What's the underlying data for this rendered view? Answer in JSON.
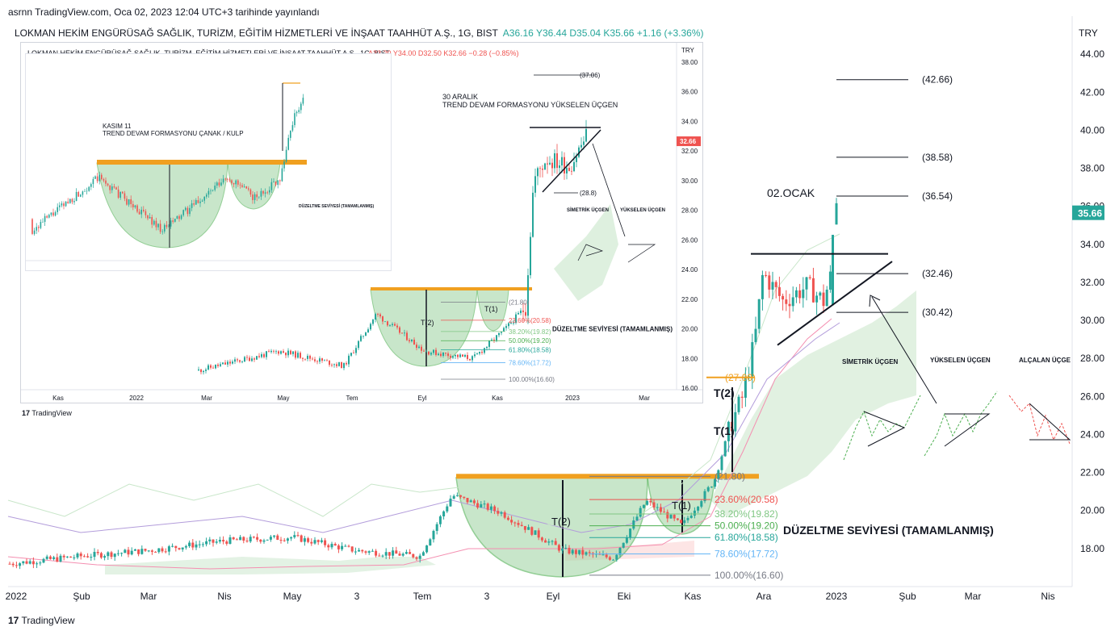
{
  "header": {
    "published": "asrnn TradingView.com, Oca 02, 2023 12:04 UTC+3 tarihinde yayınlandı"
  },
  "symbol": {
    "name": "LOKMAN HEKİM ENGÜRÜSAĞ SAĞLIK, TURİZM, EĞİTİM HİZMETLERİ VE İNŞAAT TAAHHÜT A.Ş., 1G, BIST",
    "open": "A36.16",
    "high": "Y36.44",
    "low": "D35.04",
    "close": "K35.66",
    "change": "+1.16 (+3.36%)"
  },
  "currency": "TRY",
  "last_price": "35.66",
  "brand": "TradingView",
  "colors": {
    "up": "#26a69a",
    "down": "#ef5350",
    "bowl": "#a5d6a7",
    "resistance": "#f0a020",
    "price_badge": "#26a69a"
  },
  "annotations": {
    "date_label": "02.OCAK",
    "t2": "T(2)",
    "t1": "T(1)",
    "sym_triangle": "SİMETRİK ÜÇGEN",
    "asc_triangle": "YÜKSELEN ÜÇGEN",
    "desc_triangle": "ALÇALAN ÜÇGE",
    "correction": "DÜZELTME SEVİYESİ (TAMAMLANMIŞ)",
    "fib": [
      "(21.80)",
      "23.60%(20.58)",
      "38.20%(19.82)",
      "50.00%(19.20)",
      "61.80%(18.58)",
      "78.60%(17.72)",
      "100.00%(16.60)"
    ],
    "targets": [
      "(42.66)",
      "(38.58)",
      "(36.54)",
      "(32.46)",
      "(30.42)"
    ],
    "orange_target": "(27.00)"
  },
  "inset": {
    "symbol": "LOKMAN HEKİM ENGÜRÜSAĞ SAĞLIK, TURİZM, EĞİTİM HİZMETLERİ VE İNŞAAT TAAHHÜT A.Ş., 1G, BIST",
    "ohlc": "A33.20 Y34.00 D32.50 K32.66 −0.28 (−0.85%)",
    "currency": "TRY",
    "last": "32.66",
    "note1_a": "30 ARALIK",
    "note1_b": "TREND DEVAM FORMASYONU YÜKSELEN ÜÇGEN",
    "target1": "(37.06)",
    "target2": "(28.8)",
    "sym": "SİMETRİK ÜÇGEN",
    "asc": "YÜKSELEN ÜÇGEN",
    "correction": "DÜZELTME SEVİYESİ (TAMAMLANMIŞ)",
    "fib": [
      "(21.80)",
      "23.60%(20.58)",
      "38.20%(19.82)",
      "50.00%(19.20)",
      "61.80%(18.58)",
      "78.60%(17.72)",
      "100.00%(16.60)"
    ],
    "t2": "T(2)",
    "t1": "T(1)",
    "yticks": [
      "38.00",
      "36.00",
      "34.00",
      "32.00",
      "30.00",
      "28.00",
      "26.00",
      "24.00",
      "22.00",
      "20.00",
      "18.00",
      "16.00"
    ],
    "xticks": [
      "Kas",
      "2022",
      "Mar",
      "May",
      "Tem",
      "Eyl",
      "Kas",
      "2023",
      "Mar"
    ]
  },
  "inset2": {
    "note_a": "KASIM 11",
    "note_b": "TREND DEVAM FORMASYONU ÇANAK / KULP",
    "correction": "DÜZELTME SEVİYESİ (TAMAMLANMIŞ)"
  },
  "chart_data": {
    "type": "candlestick",
    "title": "LOKMAN HEKİM ENGÜRÜSAĞ SAĞLIK, TURİZM, EĞİTİM HİZMETLERİ VE İNŞAAT TAAHHÜT A.Ş., 1G, BIST",
    "ylabel": "TRY",
    "ylim": [
      16,
      46
    ],
    "yticks": [
      18,
      20,
      22,
      24,
      26,
      28,
      30,
      32,
      34,
      36,
      38,
      40,
      42,
      44
    ],
    "xticks": [
      "2022",
      "Şub",
      "Mar",
      "Nis",
      "May",
      "3",
      "Tem",
      "3",
      "Eyl",
      "Eki",
      "Kas",
      "Ara",
      "2023",
      "Şub",
      "Mar",
      "Nis"
    ],
    "series": [
      {
        "name": "price",
        "x": [
          "2022-01",
          "2022-02",
          "2022-03",
          "2022-04",
          "2022-05",
          "2022-06",
          "2022-07",
          "2022-08",
          "2022-09",
          "2022-10",
          "2022-11",
          "2022-12",
          "2023-01-02"
        ],
        "values": [
          16.8,
          17.2,
          17.5,
          17.9,
          18.2,
          17.6,
          20.8,
          19.5,
          17.2,
          19.8,
          21.5,
          31.5,
          35.66
        ]
      }
    ],
    "levels": {
      "resistance": 21.8,
      "fib_23_6": 20.58,
      "fib_38_2": 19.82,
      "fib_50": 19.2,
      "fib_61_8": 18.58,
      "fib_78_6": 17.72,
      "fib_100": 16.6,
      "targets": [
        42.66,
        38.58,
        36.54,
        32.46,
        30.42
      ],
      "orange_target": 27.0,
      "triangle_top": 33.5
    }
  }
}
